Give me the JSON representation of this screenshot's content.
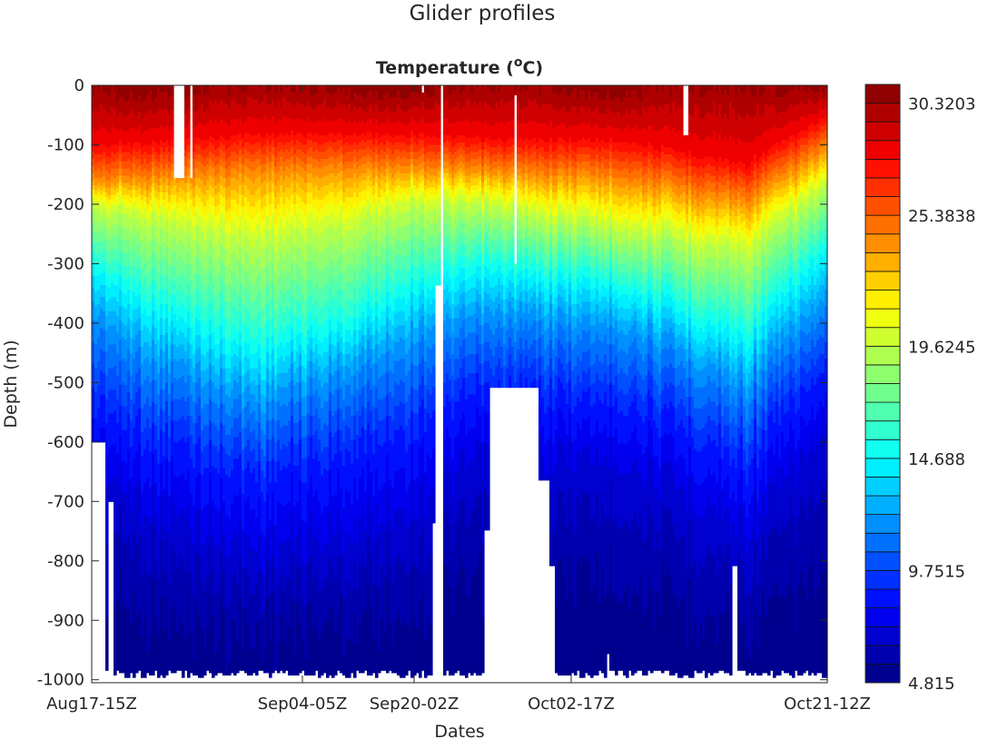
{
  "chart_data": {
    "type": "heatmap",
    "title": "Glider profiles",
    "subtitle": "Temperature  (°C)",
    "subtitle_parts": {
      "prefix": "Temperature  (",
      "degree": "o",
      "unit": "C)"
    },
    "xlabel": "Dates",
    "ylabel": "Depth  (m)",
    "x_unit": "profile index",
    "xlim": [
      0,
      810
    ],
    "ylim": [
      -1005,
      0
    ],
    "xticks": [
      {
        "value": 0,
        "label": "Aug17-15Z"
      },
      {
        "value": 232,
        "label": "Sep04-05Z"
      },
      {
        "value": 355,
        "label": "Sep20-02Z"
      },
      {
        "value": 528,
        "label": "Oct02-17Z"
      },
      {
        "value": 810,
        "label": "Oct21-12Z"
      }
    ],
    "yticks": [
      {
        "value": 0,
        "label": "0"
      },
      {
        "value": -100,
        "label": "-100"
      },
      {
        "value": -200,
        "label": "-200"
      },
      {
        "value": -300,
        "label": "-300"
      },
      {
        "value": -400,
        "label": "-400"
      },
      {
        "value": -500,
        "label": "-500"
      },
      {
        "value": -600,
        "label": "-600"
      },
      {
        "value": -700,
        "label": "-700"
      },
      {
        "value": -800,
        "label": "-800"
      },
      {
        "value": -900,
        "label": "-900"
      },
      {
        "value": -1000,
        "label": "-1000"
      }
    ],
    "colorbar": {
      "colormap": "jet",
      "levels": 32,
      "min": 4.815,
      "max": 31.143,
      "ticks": [
        {
          "value": 30.3203,
          "label": "30.3203"
        },
        {
          "value": 25.3838,
          "label": "25.3838"
        },
        {
          "value": 19.6245,
          "label": "19.6245"
        },
        {
          "value": 14.688,
          "label": "14.688"
        },
        {
          "value": 9.7515,
          "label": "9.7515"
        },
        {
          "value": 4.815,
          "label": "4.815"
        }
      ]
    },
    "surface_temperature": 30.6,
    "isotherm_temps": [
      28,
      24,
      20,
      15,
      12,
      9,
      7,
      6,
      5.2
    ],
    "isotherm_depths": [
      {
        "x": 0,
        "depths": [
          100,
          165,
          200,
          300,
          380,
          520,
          650,
          800,
          950
        ]
      },
      {
        "x": 60,
        "depths": [
          95,
          160,
          215,
          360,
          450,
          580,
          720,
          840,
          955
        ]
      },
      {
        "x": 180,
        "depths": [
          80,
          150,
          250,
          440,
          530,
          650,
          800,
          880,
          965
        ]
      },
      {
        "x": 280,
        "depths": [
          80,
          145,
          225,
          400,
          480,
          610,
          770,
          860,
          950
        ]
      },
      {
        "x": 355,
        "depths": [
          80,
          140,
          190,
          330,
          420,
          560,
          720,
          830,
          930
        ]
      },
      {
        "x": 440,
        "depths": [
          90,
          150,
          200,
          310,
          390,
          510,
          640,
          780,
          900
        ]
      },
      {
        "x": 580,
        "depths": [
          90,
          160,
          230,
          330,
          400,
          520,
          640,
          770,
          900
        ]
      },
      {
        "x": 720,
        "depths": [
          130,
          200,
          270,
          420,
          500,
          620,
          760,
          870,
          970
        ]
      },
      {
        "x": 810,
        "depths": [
          50,
          110,
          160,
          270,
          360,
          470,
          600,
          740,
          900
        ]
      }
    ],
    "max_depth": 990,
    "gaps": [
      {
        "x": [
          89,
          103
        ],
        "depth": [
          0,
          155
        ]
      },
      {
        "x": [
          107,
          110
        ],
        "depth": [
          0,
          155
        ]
      },
      {
        "x": [
          0,
          15
        ],
        "depth": [
          600,
          1005
        ]
      },
      {
        "x": [
          19,
          25
        ],
        "depth": [
          700,
          1005
        ]
      },
      {
        "x": [
          363,
          367
        ],
        "depth": [
          0,
          10
        ]
      },
      {
        "x": [
          375,
          377
        ],
        "depth": [
          735,
          1005
        ]
      },
      {
        "x": [
          377,
          384
        ],
        "depth": [
          335,
          1005
        ]
      },
      {
        "x": [
          384,
          387
        ],
        "depth": [
          0,
          1005
        ]
      },
      {
        "x": [
          466,
          469
        ],
        "depth": [
          15,
          300
        ]
      },
      {
        "x": [
          432,
          437
        ],
        "depth": [
          750,
          1005
        ]
      },
      {
        "x": [
          437,
          492
        ],
        "depth": [
          510,
          1005
        ]
      },
      {
        "x": [
          492,
          505
        ],
        "depth": [
          665,
          1005
        ]
      },
      {
        "x": [
          505,
          511
        ],
        "depth": [
          810,
          1005
        ]
      },
      {
        "x": [
          566,
          569
        ],
        "depth": [
          955,
          1005
        ]
      },
      {
        "x": [
          651,
          656
        ],
        "depth": [
          0,
          85
        ]
      },
      {
        "x": [
          705,
          710
        ],
        "depth": [
          810,
          1005
        ]
      }
    ]
  }
}
